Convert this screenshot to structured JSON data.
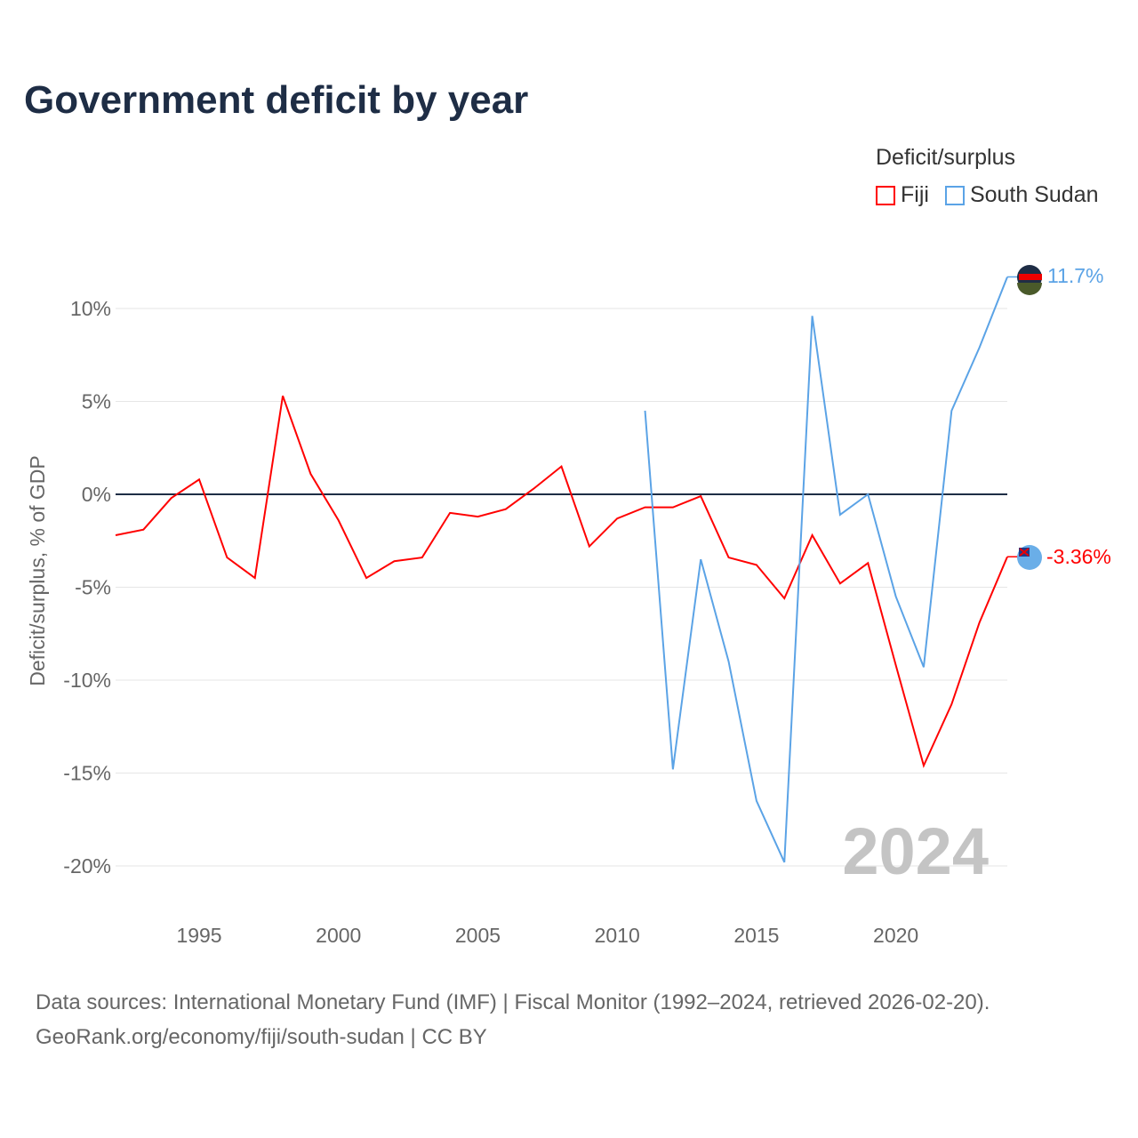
{
  "title": "Government deficit by year",
  "legend": {
    "title": "Deficit/surplus",
    "items": [
      {
        "name": "Fiji",
        "color": "#ff0000"
      },
      {
        "name": "South Sudan",
        "color": "#5ba3e6"
      }
    ]
  },
  "watermark_year": "2024",
  "end_labels": {
    "fiji": "-3.36%",
    "south_sudan": "11.7%"
  },
  "source": {
    "line1": "Data sources: International Monetary Fund (IMF) | Fiscal Monitor (1992–2024, retrieved 2026-02-20).",
    "line2": "GeoRank.org/economy/fiji/south-sudan | CC BY"
  },
  "chart_data": {
    "type": "line",
    "title": "Government deficit by year",
    "xlabel": "",
    "ylabel": "Deficit/surplus, % of GDP",
    "xlim": [
      1992,
      2024
    ],
    "ylim": [
      -21,
      12
    ],
    "x_ticks": [
      1995,
      2000,
      2005,
      2010,
      2015,
      2020
    ],
    "y_ticks": [
      10,
      5,
      0,
      -5,
      -10,
      -15,
      -20
    ],
    "y_tick_labels": [
      "10%",
      "5%",
      "0%",
      "-5%",
      "-10%",
      "-15%",
      "-20%"
    ],
    "grid": true,
    "legend_position": "top-right",
    "series": [
      {
        "name": "Fiji",
        "color": "#ff0000",
        "x": [
          1992,
          1993,
          1994,
          1995,
          1996,
          1997,
          1998,
          1999,
          2000,
          2001,
          2002,
          2003,
          2004,
          2005,
          2006,
          2007,
          2008,
          2009,
          2010,
          2011,
          2012,
          2013,
          2014,
          2015,
          2016,
          2017,
          2018,
          2019,
          2020,
          2021,
          2022,
          2023,
          2024
        ],
        "values": [
          -2.2,
          -1.9,
          -0.2,
          0.8,
          -3.4,
          -4.5,
          5.3,
          1.1,
          -1.4,
          -4.5,
          -3.6,
          -3.4,
          -1.0,
          -1.2,
          -0.8,
          0.3,
          1.5,
          -2.8,
          -1.3,
          -0.7,
          -0.7,
          -0.1,
          -3.4,
          -3.8,
          -5.6,
          -2.2,
          -4.8,
          -3.7,
          -9.2,
          -14.6,
          -11.3,
          -6.9,
          -3.36
        ]
      },
      {
        "name": "South Sudan",
        "color": "#5ba3e6",
        "x": [
          2011,
          2012,
          2013,
          2014,
          2015,
          2016,
          2017,
          2018,
          2019,
          2020,
          2021,
          2022,
          2023,
          2024
        ],
        "values": [
          4.5,
          -14.8,
          -3.5,
          -9.0,
          -16.5,
          -19.8,
          9.6,
          -1.1,
          0.0,
          -5.5,
          -9.3,
          4.5,
          7.9,
          11.7
        ]
      }
    ]
  }
}
